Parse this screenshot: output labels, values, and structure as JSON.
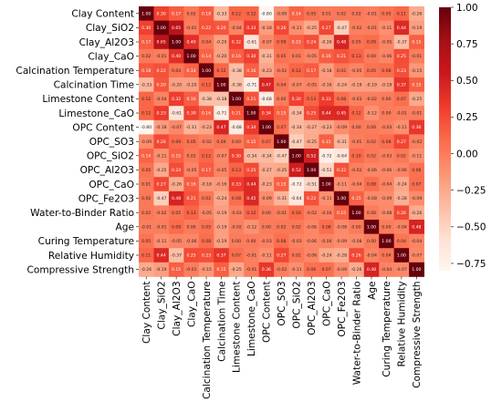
{
  "chart_data": {
    "type": "heatmap",
    "title": "",
    "variables": [
      "Clay Content",
      "Clay_SiO2",
      "Clay_Al2O3",
      "Clay_CaO",
      "Calcination Temperature",
      "Calcination Time",
      "Limestone Content",
      "Limestone_CaO",
      "OPC Content",
      "OPC_SO3",
      "OPC_SiO2",
      "OPC_Al2O3",
      "OPC_CaO",
      "OPC_Fe2O3",
      "Water-to-Binder Ratio",
      "Age",
      "Curing Temperature",
      "Relative Humidity",
      "Compressive Strength"
    ],
    "values": [
      [
        1.0,
        0.3,
        0.17,
        0.02,
        0.18,
        -0.33,
        0.12,
        0.12,
        -0.8,
        -0.09,
        0.14,
        0.05,
        0.01,
        0.02,
        0.02,
        -0.01,
        0.05,
        0.11,
        -0.26
      ],
      [
        0.3,
        1.0,
        0.65,
        -0.01,
        0.22,
        0.2,
        -0.04,
        0.33,
        -0.18,
        0.26,
        -0.11,
        -0.25,
        0.27,
        -0.47,
        -0.02,
        -0.01,
        -0.11,
        0.44,
        -0.19
      ],
      [
        0.17,
        0.65,
        1.0,
        0.4,
        0.04,
        -0.2,
        0.32,
        -0.61,
        -0.07,
        0.09,
        0.15,
        0.24,
        -0.26,
        0.48,
        0.05,
        0.09,
        -0.05,
        -0.37,
        0.15
      ],
      [
        0.02,
        -0.01,
        0.4,
        1.0,
        0.14,
        -0.2,
        0.16,
        0.3,
        -0.31,
        0.05,
        0.01,
        -0.05,
        0.16,
        0.21,
        0.13,
        0.0,
        -0.06,
        0.25,
        -0.01
      ],
      [
        0.18,
        0.22,
        0.04,
        0.14,
        1.0,
        0.12,
        -0.38,
        0.16,
        -0.23,
        -0.02,
        0.12,
        0.17,
        -0.18,
        0.02,
        -0.05,
        0.05,
        0.08,
        0.23,
        -0.15
      ],
      [
        -0.33,
        0.2,
        -0.2,
        -0.2,
        0.12,
        1.0,
        -0.38,
        -0.71,
        0.47,
        0.04,
        -0.07,
        -0.05,
        -0.16,
        -0.24,
        -0.19,
        -0.19,
        -0.19,
        0.37,
        0.15
      ],
      [
        0.12,
        -0.04,
        0.32,
        0.16,
        -0.38,
        -0.38,
        1.0,
        0.21,
        -0.68,
        0.0,
        0.3,
        0.13,
        0.33,
        0.08,
        -0.03,
        -0.02,
        0.0,
        0.07,
        -0.25
      ],
      [
        0.12,
        0.33,
        -0.61,
        0.3,
        0.16,
        -0.71,
        0.21,
        1.0,
        0.34,
        0.15,
        -0.34,
        0.25,
        0.44,
        0.45,
        0.12,
        -0.12,
        0.0,
        -0.01,
        -0.01
      ],
      [
        -0.8,
        -0.18,
        -0.07,
        -0.31,
        -0.23,
        0.47,
        -0.68,
        0.34,
        1.0,
        0.07,
        -0.34,
        -0.27,
        -0.23,
        -0.09,
        0.0,
        0.0,
        -0.03,
        -0.11,
        0.36
      ],
      [
        -0.09,
        0.26,
        0.09,
        0.05,
        -0.02,
        0.04,
        0.0,
        0.15,
        0.07,
        1.0,
        -0.47,
        -0.25,
        0.15,
        -0.31,
        -0.01,
        0.02,
        0.08,
        0.27,
        -0.02
      ],
      [
        0.14,
        -0.11,
        0.15,
        0.01,
        0.12,
        -0.07,
        0.3,
        -0.34,
        -0.34,
        -0.47,
        1.0,
        0.52,
        -0.72,
        -0.64,
        0.1,
        0.02,
        -0.03,
        0.02,
        -0.11
      ],
      [
        0.05,
        -0.25,
        0.24,
        -0.05,
        0.17,
        -0.05,
        0.13,
        0.25,
        -0.27,
        -0.25,
        0.52,
        1.0,
        -0.51,
        0.22,
        -0.02,
        -0.06,
        -0.06,
        -0.06,
        0.06
      ],
      [
        0.01,
        0.27,
        -0.26,
        0.16,
        -0.18,
        -0.16,
        0.33,
        0.44,
        -0.23,
        0.15,
        -0.72,
        -0.51,
        1.0,
        -0.11,
        -0.04,
        0.08,
        -0.04,
        -0.24,
        0.07
      ],
      [
        0.02,
        -0.47,
        0.48,
        0.21,
        0.02,
        -0.24,
        0.08,
        0.45,
        -0.09,
        -0.31,
        -0.64,
        0.22,
        -0.11,
        1.0,
        0.15,
        -0.08,
        -0.09,
        -0.28,
        -0.09
      ],
      [
        0.02,
        -0.02,
        0.05,
        0.13,
        -0.05,
        -0.19,
        -0.03,
        0.12,
        0.0,
        -0.01,
        0.1,
        -0.02,
        -0.04,
        0.15,
        1.0,
        0.0,
        -0.08,
        0.26,
        -0.26
      ],
      [
        -0.01,
        -0.01,
        0.09,
        0.0,
        0.05,
        -0.19,
        -0.02,
        -0.12,
        0.0,
        0.02,
        0.02,
        -0.06,
        0.08,
        -0.08,
        0.0,
        1.0,
        0.0,
        -0.04,
        0.48
      ],
      [
        0.05,
        -0.11,
        -0.05,
        -0.06,
        0.08,
        -0.19,
        0.0,
        0.0,
        -0.03,
        0.08,
        -0.03,
        -0.06,
        -0.04,
        -0.09,
        -0.08,
        0.0,
        1.0,
        0.04,
        -0.04
      ],
      [
        0.11,
        0.44,
        -0.37,
        0.25,
        0.23,
        0.37,
        0.07,
        -0.01,
        -0.11,
        0.27,
        0.02,
        -0.06,
        -0.24,
        -0.28,
        0.26,
        -0.04,
        0.04,
        1.0,
        -0.07
      ],
      [
        -0.26,
        -0.19,
        0.15,
        -0.01,
        -0.15,
        0.15,
        -0.25,
        -0.01,
        0.36,
        -0.02,
        -0.11,
        0.06,
        0.07,
        -0.09,
        -0.26,
        0.48,
        -0.04,
        -0.07,
        1.0
      ]
    ],
    "vmin": -0.8,
    "vmax": 1.0,
    "colormap": "Reds",
    "colorbar_ticks": [
      1.0,
      0.75,
      0.5,
      0.25,
      0.0,
      -0.25,
      -0.5,
      -0.75
    ],
    "colorbar_tick_labels": [
      "1.00",
      "0.75",
      "0.50",
      "0.25",
      "0.00",
      "−0.25",
      "−0.50",
      "−0.75"
    ],
    "annotations": true
  }
}
